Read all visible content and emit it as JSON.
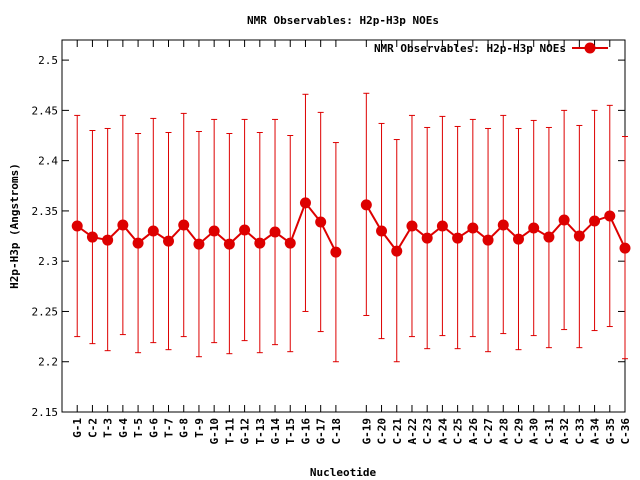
{
  "chart_data": {
    "type": "line",
    "title": "NMR Observables: H2p-H3p NOEs",
    "xlabel": "Nucleotide",
    "ylabel": "H2p-H3p (Angstroms)",
    "ylim": [
      2.15,
      2.52
    ],
    "yticks": [
      "2.15",
      "2.2",
      "2.25",
      "2.3",
      "2.35",
      "2.4",
      "2.45",
      "2.5"
    ],
    "grid": false,
    "legend_position": "top-right",
    "series": [
      {
        "name": "NMR Observables: H2p-H3p NOEs",
        "color": "#dd0000",
        "x": [
          1,
          2,
          3,
          4,
          5,
          6,
          7,
          8,
          9,
          10,
          11,
          12,
          13,
          14,
          15,
          16,
          17,
          18,
          20,
          21,
          22,
          23,
          24,
          25,
          26,
          27,
          28,
          29,
          30,
          31,
          32,
          33,
          34,
          35,
          36,
          37
        ],
        "categories": [
          "G-1",
          "C-2",
          "T-3",
          "G-4",
          "T-5",
          "G-6",
          "T-7",
          "G-8",
          "T-9",
          "G-10",
          "T-11",
          "G-12",
          "T-13",
          "G-14",
          "T-15",
          "G-16",
          "G-17",
          "C-18",
          "G-19",
          "C-20",
          "C-21",
          "A-22",
          "C-23",
          "A-24",
          "C-25",
          "A-26",
          "C-27",
          "A-28",
          "C-29",
          "A-30",
          "C-31",
          "A-32",
          "C-33",
          "A-34",
          "G-35",
          "C-36"
        ],
        "values": [
          2.335,
          2.324,
          2.321,
          2.336,
          2.318,
          2.33,
          2.32,
          2.336,
          2.317,
          2.33,
          2.317,
          2.331,
          2.318,
          2.329,
          2.318,
          2.358,
          2.339,
          2.309,
          2.356,
          2.33,
          2.31,
          2.335,
          2.323,
          2.335,
          2.323,
          2.333,
          2.321,
          2.336,
          2.322,
          2.333,
          2.324,
          2.341,
          2.325,
          2.34,
          2.345,
          2.313
        ],
        "err_high": [
          2.445,
          2.43,
          2.432,
          2.445,
          2.427,
          2.442,
          2.428,
          2.447,
          2.429,
          2.441,
          2.427,
          2.441,
          2.428,
          2.441,
          2.425,
          2.466,
          2.448,
          2.418,
          2.467,
          2.437,
          2.421,
          2.445,
          2.433,
          2.444,
          2.434,
          2.441,
          2.432,
          2.445,
          2.432,
          2.44,
          2.433,
          2.45,
          2.435,
          2.45,
          2.455,
          2.424
        ],
        "err_low": [
          2.225,
          2.218,
          2.211,
          2.227,
          2.209,
          2.219,
          2.212,
          2.225,
          2.205,
          2.219,
          2.208,
          2.221,
          2.209,
          2.217,
          2.21,
          2.25,
          2.23,
          2.2,
          2.246,
          2.223,
          2.2,
          2.225,
          2.213,
          2.226,
          2.213,
          2.225,
          2.21,
          2.228,
          2.212,
          2.226,
          2.214,
          2.232,
          2.214,
          2.231,
          2.235,
          2.203
        ]
      }
    ]
  }
}
